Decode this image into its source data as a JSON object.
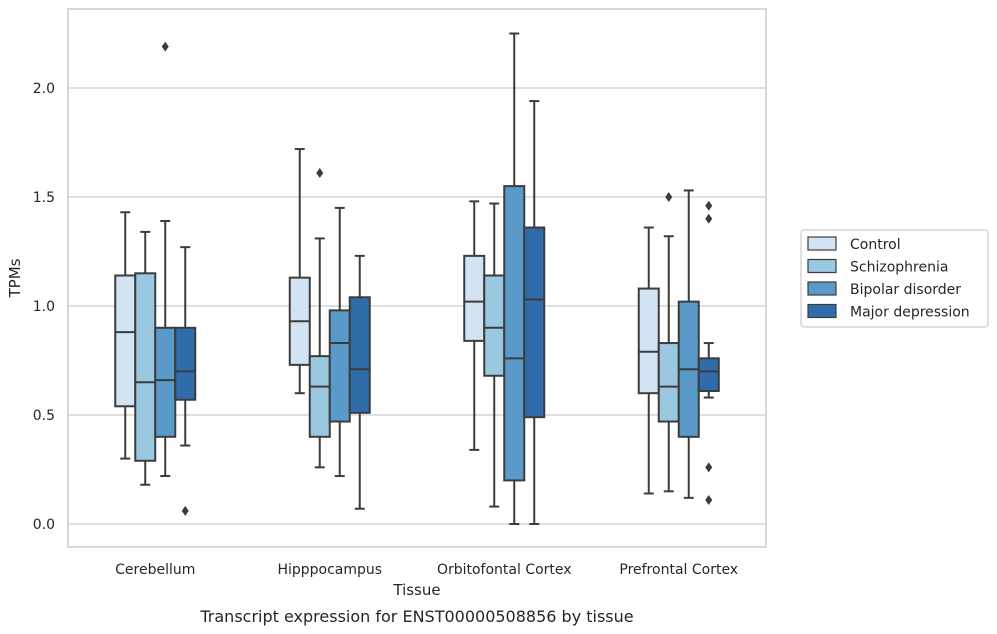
{
  "caption": "Transcript expression for ENST00000508856 by tissue",
  "chart_data": {
    "type": "box",
    "xlabel": "Tissue",
    "ylabel": "TPMs",
    "ylim": [
      -0.1,
      2.35
    ],
    "yticks": [
      "0.0",
      "0.5",
      "1.0",
      "1.5",
      "2.0"
    ],
    "grid": "horizontal",
    "legend_position": "outside-right",
    "categories": [
      "Cerebellum",
      "Hipppocampus",
      "Orbitofontal Cortex",
      "Prefrontal Cortex"
    ],
    "series": [
      {
        "name": "Control",
        "color": "#d2e3f3",
        "boxes": [
          {
            "whisker_low": 0.3,
            "q1": 0.54,
            "median": 0.88,
            "q3": 1.14,
            "whisker_high": 1.43,
            "outliers": []
          },
          {
            "whisker_low": 0.6,
            "q1": 0.73,
            "median": 0.93,
            "q3": 1.13,
            "whisker_high": 1.72,
            "outliers": []
          },
          {
            "whisker_low": 0.34,
            "q1": 0.84,
            "median": 1.02,
            "q3": 1.23,
            "whisker_high": 1.48,
            "outliers": []
          },
          {
            "whisker_low": 0.14,
            "q1": 0.6,
            "median": 0.79,
            "q3": 1.08,
            "whisker_high": 1.36,
            "outliers": []
          }
        ]
      },
      {
        "name": "Schizophrenia",
        "color": "#9ac8e0",
        "boxes": [
          {
            "whisker_low": 0.18,
            "q1": 0.29,
            "median": 0.65,
            "q3": 1.15,
            "whisker_high": 1.34,
            "outliers": []
          },
          {
            "whisker_low": 0.26,
            "q1": 0.4,
            "median": 0.63,
            "q3": 0.77,
            "whisker_high": 1.31,
            "outliers": [
              1.61
            ]
          },
          {
            "whisker_low": 0.08,
            "q1": 0.68,
            "median": 0.9,
            "q3": 1.14,
            "whisker_high": 1.47,
            "outliers": []
          },
          {
            "whisker_low": 0.15,
            "q1": 0.47,
            "median": 0.63,
            "q3": 0.83,
            "whisker_high": 1.32,
            "outliers": [
              1.5
            ]
          }
        ]
      },
      {
        "name": "Bipolar disorder",
        "color": "#5a9ac9",
        "boxes": [
          {
            "whisker_low": 0.22,
            "q1": 0.4,
            "median": 0.66,
            "q3": 0.9,
            "whisker_high": 1.39,
            "outliers": [
              2.19
            ]
          },
          {
            "whisker_low": 0.22,
            "q1": 0.47,
            "median": 0.83,
            "q3": 0.98,
            "whisker_high": 1.45,
            "outliers": []
          },
          {
            "whisker_low": 0.0,
            "q1": 0.2,
            "median": 0.76,
            "q3": 1.55,
            "whisker_high": 2.25,
            "outliers": []
          },
          {
            "whisker_low": 0.12,
            "q1": 0.4,
            "median": 0.71,
            "q3": 1.02,
            "whisker_high": 1.53,
            "outliers": []
          }
        ]
      },
      {
        "name": "Major depression",
        "color": "#2f6ca9",
        "boxes": [
          {
            "whisker_low": 0.36,
            "q1": 0.57,
            "median": 0.7,
            "q3": 0.9,
            "whisker_high": 1.27,
            "outliers": [
              0.06
            ]
          },
          {
            "whisker_low": 0.07,
            "q1": 0.51,
            "median": 0.71,
            "q3": 1.04,
            "whisker_high": 1.23,
            "outliers": []
          },
          {
            "whisker_low": 0.0,
            "q1": 0.49,
            "median": 1.03,
            "q3": 1.36,
            "whisker_high": 1.94,
            "outliers": []
          },
          {
            "whisker_low": 0.58,
            "q1": 0.61,
            "median": 0.7,
            "q3": 0.76,
            "whisker_high": 0.83,
            "outliers": [
              0.26,
              0.11,
              1.4,
              1.46
            ]
          }
        ]
      }
    ]
  }
}
